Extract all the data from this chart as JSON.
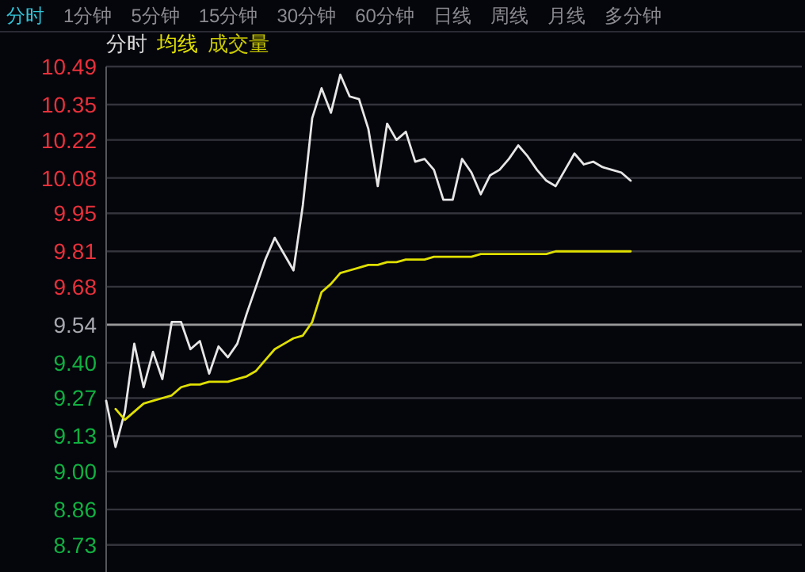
{
  "chart_data": {
    "type": "line",
    "annotations": [
      "分时",
      "1分钟",
      "5分钟",
      "15分钟",
      "30分钟",
      "60分钟",
      "日线",
      "周线",
      "月线",
      "多分钟",
      "成交量"
    ],
    "categories": [
      null,
      null,
      null,
      null,
      null,
      null,
      null,
      null,
      null,
      null,
      null,
      null,
      null,
      null,
      null,
      null,
      null,
      null,
      null,
      null,
      null,
      null,
      null,
      null,
      null,
      null,
      null,
      null,
      null,
      null,
      null,
      null,
      null,
      null,
      null,
      null,
      null,
      null,
      null,
      null,
      null,
      null,
      null,
      null,
      null,
      null,
      null,
      null,
      null,
      null,
      null,
      null,
      null,
      null,
      null,
      null,
      null
    ],
    "ylim": [
      8.63,
      10.49
    ],
    "yticks": [
      {
        "value": 8.73,
        "label": "8.73"
      },
      {
        "value": 8.86,
        "label": "8.86"
      },
      {
        "value": 9.0,
        "label": "9.00"
      },
      {
        "value": 9.13,
        "label": "9.13"
      },
      {
        "value": 9.27,
        "label": "9.27"
      },
      {
        "value": 9.4,
        "label": "9.40"
      },
      {
        "value": 9.54,
        "label": "9.54"
      },
      {
        "value": 9.68,
        "label": "9.68"
      },
      {
        "value": 9.81,
        "label": "9.81"
      },
      {
        "value": 9.95,
        "label": "9.95"
      },
      {
        "value": 10.08,
        "label": "10.08"
      },
      {
        "value": 10.22,
        "label": "10.22"
      },
      {
        "value": 10.35,
        "label": "10.35"
      },
      {
        "value": 10.49,
        "label": "10.49"
      }
    ],
    "tick_labels": "y",
    "grid": "y",
    "marker": "none",
    "line_style": "solid",
    "ref_lines": [
      {
        "axis": "y",
        "value": 9.54,
        "color": "#9a9a9a"
      }
    ],
    "series": [
      {
        "name": "分时",
        "color": "#e6e6e6",
        "values": [
          9.26,
          9.09,
          9.22,
          9.47,
          9.31,
          9.44,
          9.34,
          9.55,
          9.55,
          9.45,
          9.48,
          9.36,
          9.46,
          9.42,
          9.47,
          9.58,
          9.68,
          9.78,
          9.86,
          9.8,
          9.74,
          9.98,
          10.3,
          10.41,
          10.32,
          10.46,
          10.38,
          10.37,
          10.26,
          10.05,
          10.28,
          10.22,
          10.25,
          10.14,
          10.15,
          10.11,
          10.0,
          10.0,
          10.15,
          10.1,
          10.02,
          10.09,
          10.11,
          10.15,
          10.2,
          10.16,
          10.11,
          10.07,
          10.05,
          10.11,
          10.17,
          10.13,
          10.14,
          10.12,
          10.11,
          10.1,
          10.07
        ]
      },
      {
        "name": "均线",
        "color": "#e0e000",
        "values": [
          null,
          9.23,
          9.19,
          9.22,
          9.25,
          9.26,
          9.27,
          9.28,
          9.31,
          9.32,
          9.32,
          9.33,
          9.33,
          9.33,
          9.34,
          9.35,
          9.37,
          9.41,
          9.45,
          9.47,
          9.49,
          9.5,
          9.55,
          9.66,
          9.69,
          9.73,
          9.74,
          9.75,
          9.76,
          9.76,
          9.77,
          9.77,
          9.78,
          9.78,
          9.78,
          9.79,
          9.79,
          9.79,
          9.79,
          9.79,
          9.8,
          9.8,
          9.8,
          9.8,
          9.8,
          9.8,
          9.8,
          9.8,
          9.81,
          9.81,
          9.81,
          9.81,
          9.81,
          9.81,
          9.81,
          9.81,
          9.81
        ]
      }
    ]
  }
}
